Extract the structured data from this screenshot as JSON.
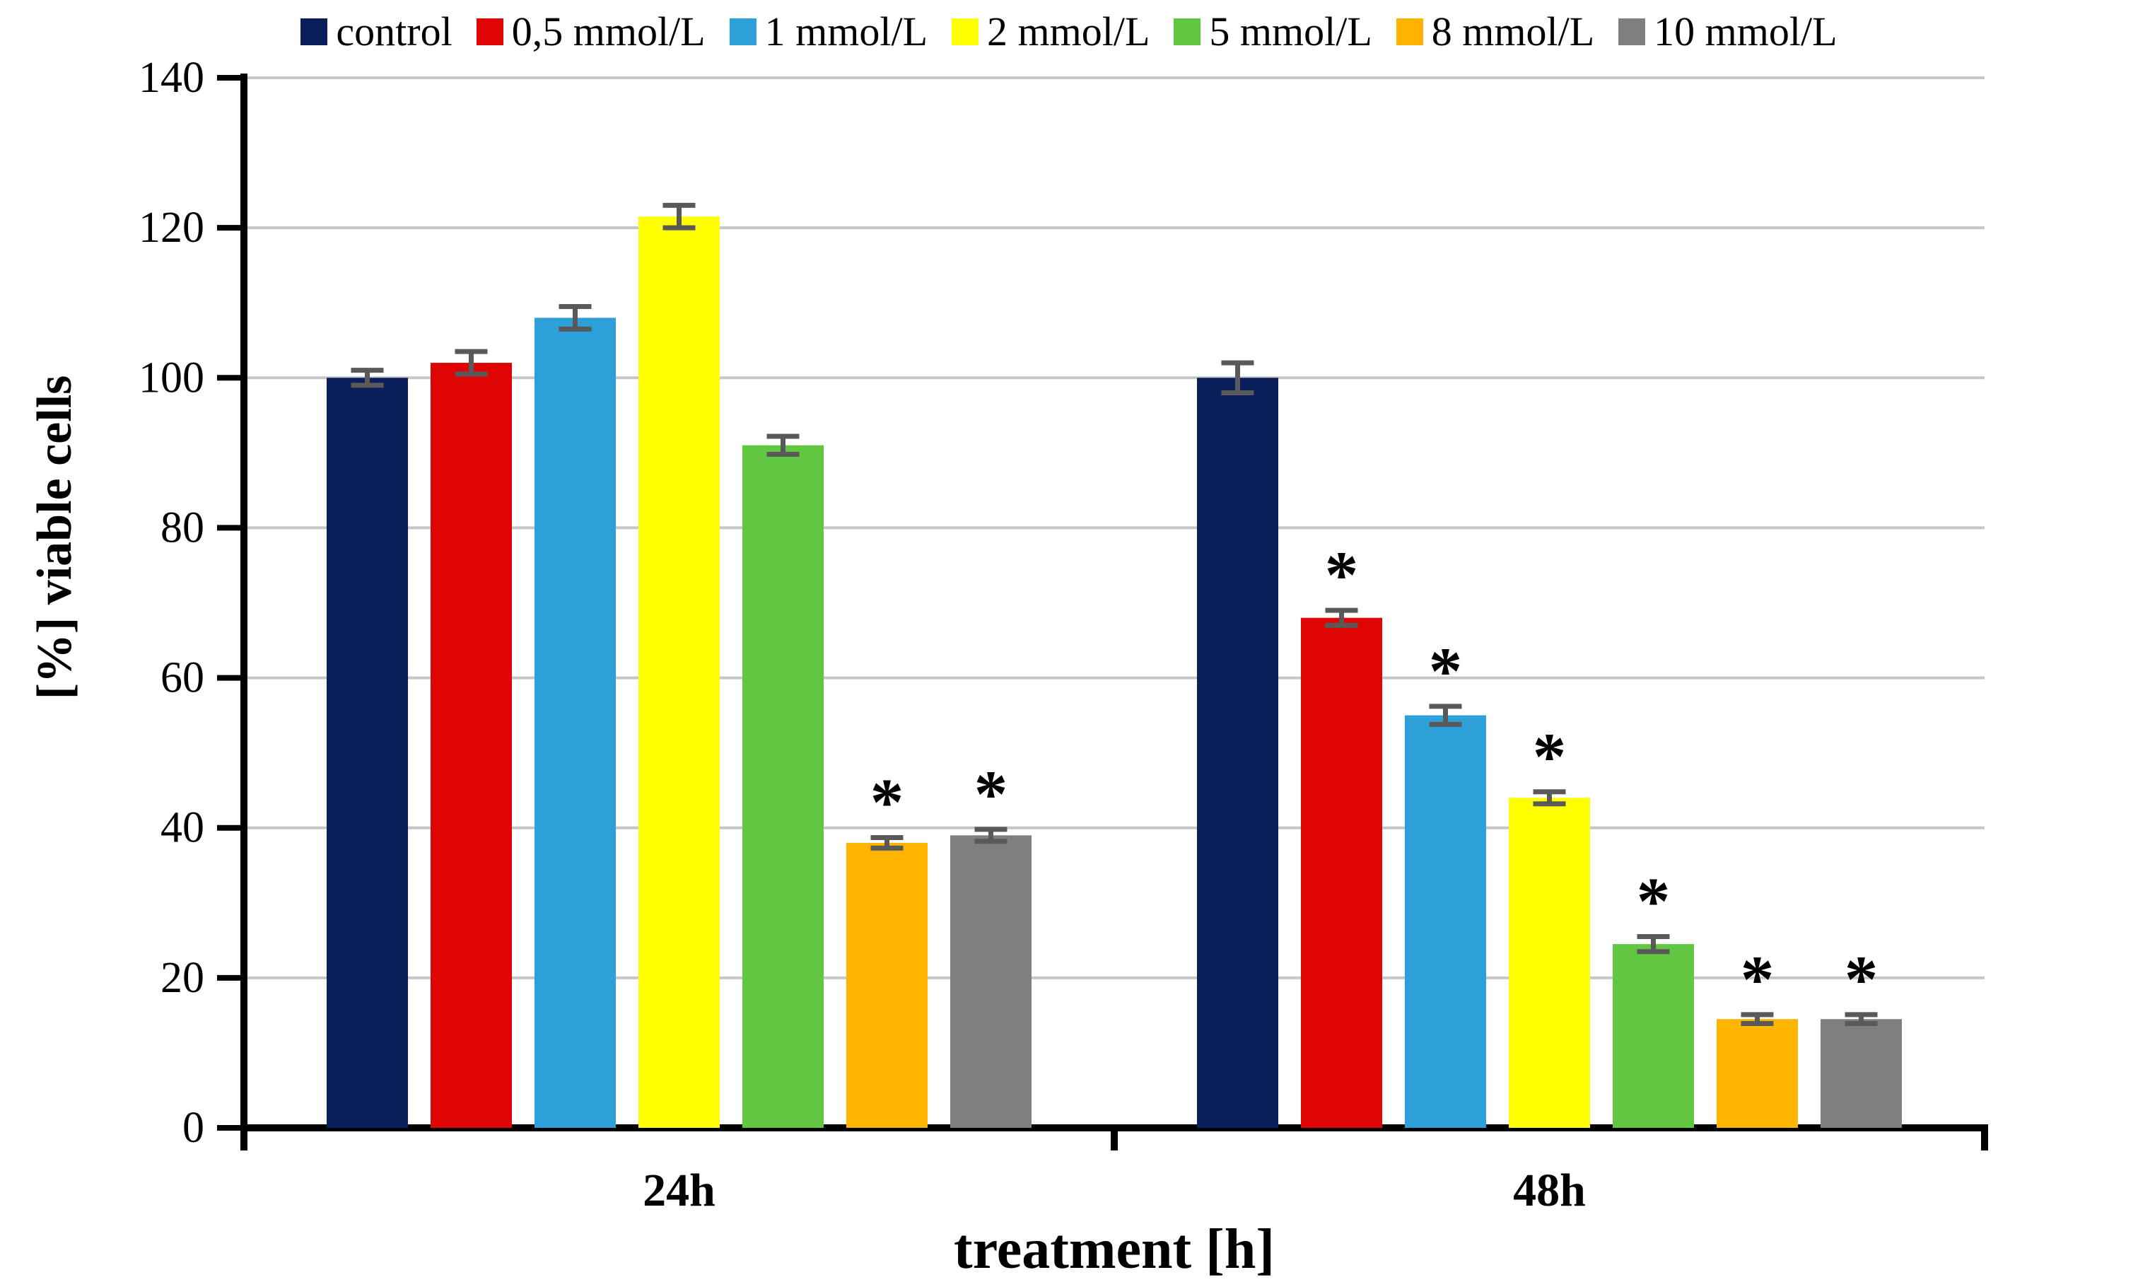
{
  "chart_data": {
    "type": "bar",
    "title": "",
    "ylabel": "[%] viable cells",
    "xlabel": "treatment [h]",
    "categories": [
      "24h",
      "48h"
    ],
    "ylim": [
      0,
      140
    ],
    "yticks": [
      0,
      20,
      40,
      60,
      80,
      100,
      120,
      140
    ],
    "grid": "horizontal-major",
    "legend_position": "top",
    "significance_marker": "*",
    "colors": {
      "axis": "#000000",
      "gridline": "#c6c6c6",
      "error_bar": "#595959",
      "text": "#000000"
    },
    "series": [
      {
        "name": "control",
        "color": "#0a1e5a",
        "values": [
          100,
          100
        ],
        "errors": [
          1.0,
          2.0
        ],
        "significant": [
          false,
          false
        ]
      },
      {
        "name": "0,5 mmol/L",
        "color": "#e00505",
        "values": [
          102,
          68
        ],
        "errors": [
          1.5,
          1.0
        ],
        "significant": [
          false,
          true
        ]
      },
      {
        "name": "1 mmol/L",
        "color": "#2da0d9",
        "values": [
          108,
          55
        ],
        "errors": [
          1.5,
          1.2
        ],
        "significant": [
          false,
          true
        ]
      },
      {
        "name": "2 mmol/L",
        "color": "#ffff00",
        "values": [
          121.5,
          44
        ],
        "errors": [
          1.5,
          0.8
        ],
        "significant": [
          false,
          true
        ]
      },
      {
        "name": "5 mmol/L",
        "color": "#62c740",
        "values": [
          91,
          24.5
        ],
        "errors": [
          1.2,
          1.0
        ],
        "significant": [
          false,
          true
        ]
      },
      {
        "name": "8 mmol/L",
        "color": "#ffb400",
        "values": [
          38,
          14.5
        ],
        "errors": [
          0.7,
          0.6
        ],
        "significant": [
          true,
          true
        ]
      },
      {
        "name": "10 mmol/L",
        "color": "#7f7f7f",
        "values": [
          39,
          14.5
        ],
        "errors": [
          0.8,
          0.6
        ],
        "significant": [
          true,
          true
        ]
      }
    ]
  }
}
